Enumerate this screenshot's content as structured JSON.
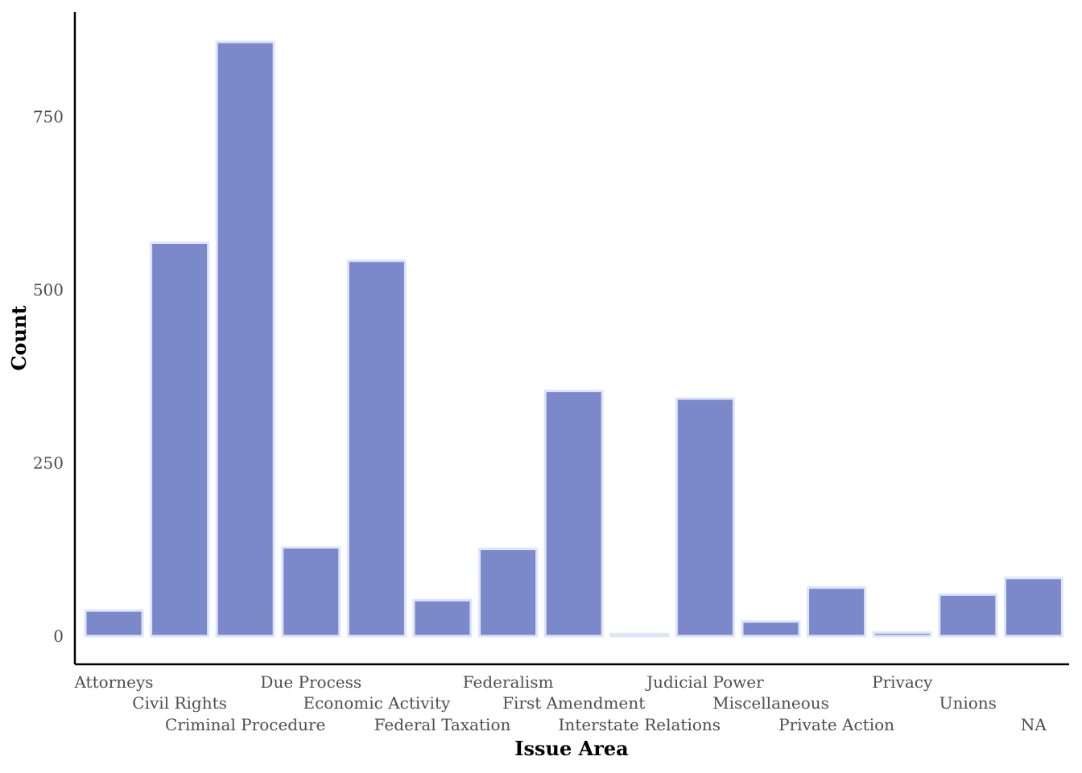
{
  "chart_data": {
    "type": "bar",
    "title": "",
    "xlabel": "Issue Area",
    "ylabel": "Count",
    "categories": [
      "Attorneys",
      "Civil Rights",
      "Criminal Procedure",
      "Due Process",
      "Economic Activity",
      "Federal Taxation",
      "Federalism",
      "First Amendment",
      "Interstate Relations",
      "Judicial Power",
      "Miscellaneous",
      "Private Action",
      "Privacy",
      "Unions",
      "NA"
    ],
    "values": [
      37,
      568,
      858,
      128,
      542,
      52,
      126,
      354,
      3,
      343,
      21,
      70,
      5,
      60,
      84
    ],
    "ylim": [
      -40,
      900
    ],
    "yticks": [
      0,
      250,
      500,
      750
    ],
    "yticklabels": [
      "0",
      "250",
      "500",
      "750"
    ],
    "grid": false,
    "legend": "none",
    "colors": {
      "bar_fill": "#7b88ca",
      "bar_stroke": "#dde4fb",
      "axis": "#000000"
    }
  }
}
